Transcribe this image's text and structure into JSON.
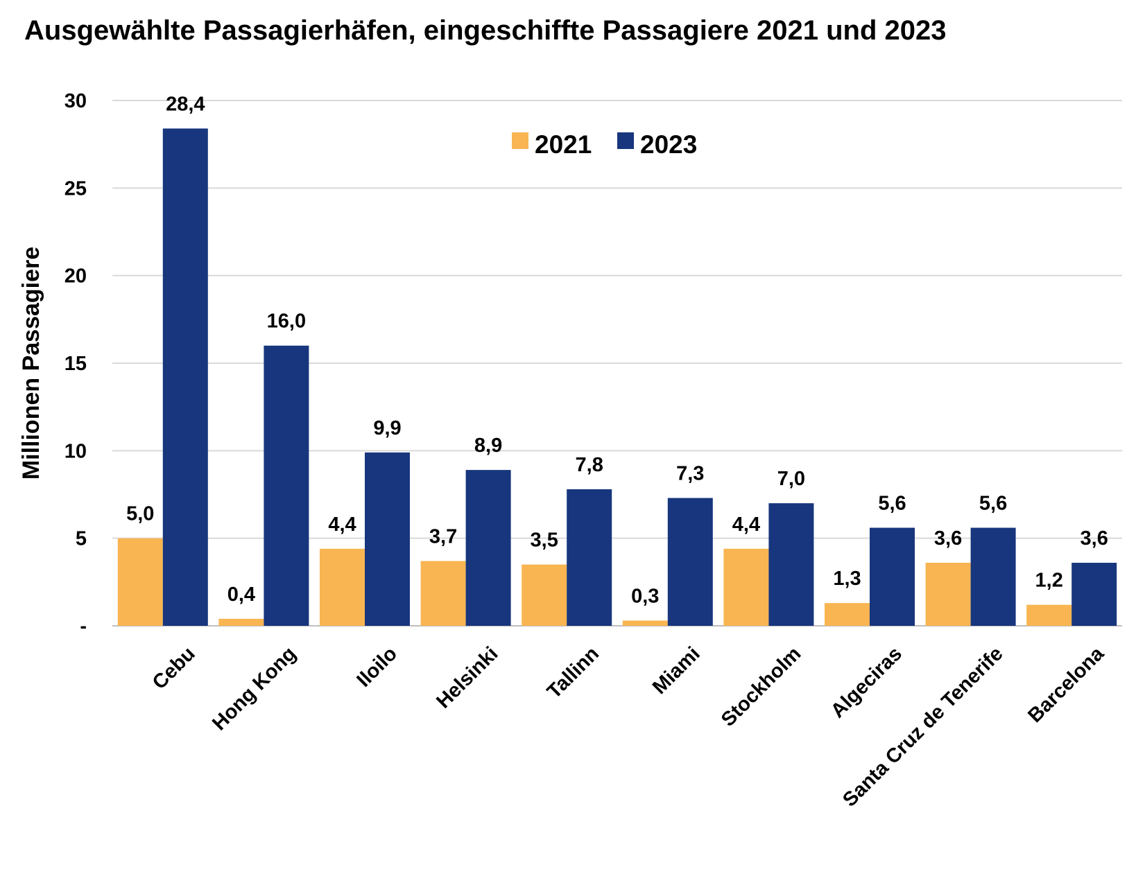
{
  "chart_data": {
    "type": "bar",
    "title": "Ausgewählte Passagierhäfen, eingeschiffte Passagiere 2021 und 2023",
    "xlabel": "",
    "ylabel": "Millionen Passagiere",
    "ylim": [
      0,
      30
    ],
    "yticks": [
      0,
      5,
      10,
      15,
      20,
      25,
      30
    ],
    "ytick_labels": [
      "-",
      "5",
      "10",
      "15",
      "20",
      "25",
      "30"
    ],
    "grid": true,
    "legend_position": "top-center",
    "categories": [
      "Cebu",
      "Hong Kong",
      "Iloilo",
      "Helsinki",
      "Tallinn",
      "Miami",
      "Stockholm",
      "Algeciras",
      "Santa Cruz de Tenerife",
      "Barcelona"
    ],
    "series": [
      {
        "name": "2021",
        "color": "#F9B552",
        "values": [
          5.0,
          0.4,
          4.4,
          3.7,
          3.5,
          0.3,
          4.4,
          1.3,
          3.6,
          1.2
        ],
        "labels": [
          "5,0",
          "0,4",
          "4,4",
          "3,7",
          "3,5",
          "0,3",
          "4,4",
          "1,3",
          "3,6",
          "1,2"
        ]
      },
      {
        "name": "2023",
        "color": "#17367D",
        "values": [
          28.4,
          16.0,
          9.9,
          8.9,
          7.8,
          7.3,
          7.0,
          5.6,
          5.6,
          3.6
        ],
        "labels": [
          "28,4",
          "16,0",
          "9,9",
          "8,9",
          "7,8",
          "7,3",
          "7,0",
          "5,6",
          "5,6",
          "3,6"
        ]
      }
    ]
  },
  "colors": {
    "grid": "#D9D9D9",
    "axis": "#BFBFBF"
  }
}
